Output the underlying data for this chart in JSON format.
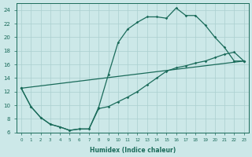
{
  "xlabel": "Humidex (Indice chaleur)",
  "xlim": [
    -0.5,
    23.5
  ],
  "ylim": [
    6,
    25
  ],
  "xticks": [
    0,
    1,
    2,
    3,
    4,
    5,
    6,
    7,
    8,
    9,
    10,
    11,
    12,
    13,
    14,
    15,
    16,
    17,
    18,
    19,
    20,
    21,
    22,
    23
  ],
  "yticks": [
    6,
    8,
    10,
    12,
    14,
    16,
    18,
    20,
    22,
    24
  ],
  "bg_color": "#cce8e8",
  "grid_color": "#aacfcf",
  "line_color": "#1a6b5a",
  "line1_x": [
    0,
    1,
    2,
    3,
    4,
    5,
    6,
    7,
    8,
    9,
    10,
    11,
    12,
    13,
    14,
    15,
    16,
    17,
    18,
    19,
    20,
    21,
    22,
    23
  ],
  "line1_y": [
    12.5,
    9.8,
    8.2,
    7.2,
    6.8,
    6.3,
    6.5,
    6.5,
    9.7,
    14.5,
    19.2,
    21.2,
    22.2,
    23.0,
    23.0,
    22.8,
    24.3,
    23.2,
    23.2,
    21.8,
    20.0,
    18.5,
    16.5,
    16.5
  ],
  "line2_x": [
    0,
    1,
    2,
    3,
    4,
    5,
    6,
    7,
    8,
    9,
    10,
    11,
    12,
    13,
    14,
    15,
    16,
    17,
    18,
    19,
    20,
    21,
    22,
    23
  ],
  "line2_y": [
    12.5,
    9.8,
    8.2,
    7.2,
    6.8,
    6.3,
    6.5,
    6.5,
    9.5,
    9.8,
    10.5,
    11.2,
    12.0,
    13.0,
    14.0,
    15.0,
    15.5,
    15.8,
    16.2,
    16.5,
    17.0,
    17.5,
    17.8,
    16.5
  ],
  "line3_x": [
    0,
    23
  ],
  "line3_y": [
    12.5,
    16.5
  ]
}
